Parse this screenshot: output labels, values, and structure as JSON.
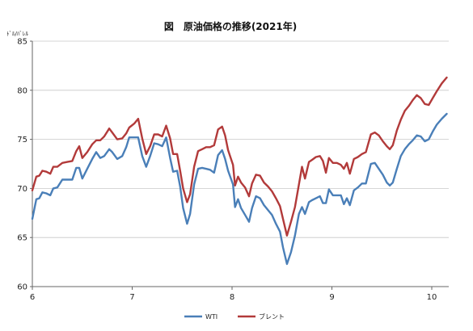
{
  "chart_data": {
    "type": "line",
    "title": "図　原油価格の推移(2021年)",
    "ylabel": "ﾄﾞﾙ/ﾊﾞﾚﾙ",
    "xlabel": "",
    "ylim": [
      60,
      85
    ],
    "yticks": [
      60,
      65,
      70,
      75,
      80,
      85
    ],
    "xlim": [
      6.0,
      10.17
    ],
    "xticks": [
      6,
      7,
      8,
      9,
      10
    ],
    "xticklabels": [
      "6",
      "7",
      "8",
      "9",
      "10"
    ],
    "grid": "horizontal",
    "legend_position": "bottom",
    "series": [
      {
        "name": "WTI",
        "color": "#4a7fb8",
        "points": [
          [
            6.0,
            66.9
          ],
          [
            6.04,
            68.9
          ],
          [
            6.07,
            69.0
          ],
          [
            6.1,
            69.6
          ],
          [
            6.14,
            69.5
          ],
          [
            6.18,
            69.3
          ],
          [
            6.21,
            70.0
          ],
          [
            6.25,
            70.1
          ],
          [
            6.3,
            70.9
          ],
          [
            6.35,
            70.9
          ],
          [
            6.4,
            70.9
          ],
          [
            6.44,
            72.1
          ],
          [
            6.47,
            72.1
          ],
          [
            6.5,
            71.0
          ],
          [
            6.55,
            72.0
          ],
          [
            6.6,
            73.0
          ],
          [
            6.64,
            73.7
          ],
          [
            6.68,
            73.1
          ],
          [
            6.72,
            73.3
          ],
          [
            6.77,
            74.0
          ],
          [
            6.8,
            73.7
          ],
          [
            6.85,
            73.0
          ],
          [
            6.9,
            73.3
          ],
          [
            6.94,
            74.2
          ],
          [
            6.97,
            75.2
          ],
          [
            7.02,
            75.2
          ],
          [
            7.06,
            75.2
          ],
          [
            7.1,
            73.3
          ],
          [
            7.14,
            72.2
          ],
          [
            7.18,
            73.3
          ],
          [
            7.22,
            74.6
          ],
          [
            7.26,
            74.5
          ],
          [
            7.3,
            74.3
          ],
          [
            7.34,
            75.2
          ],
          [
            7.38,
            73.1
          ],
          [
            7.41,
            71.7
          ],
          [
            7.45,
            71.8
          ],
          [
            7.48,
            70.2
          ],
          [
            7.51,
            68.0
          ],
          [
            7.55,
            66.4
          ],
          [
            7.58,
            67.4
          ],
          [
            7.62,
            70.4
          ],
          [
            7.66,
            72.0
          ],
          [
            7.7,
            72.1
          ],
          [
            7.74,
            72.0
          ],
          [
            7.78,
            71.9
          ],
          [
            7.82,
            71.6
          ],
          [
            7.86,
            73.4
          ],
          [
            7.9,
            73.9
          ],
          [
            7.93,
            73.0
          ],
          [
            7.96,
            71.8
          ],
          [
            8.01,
            70.4
          ],
          [
            8.03,
            68.1
          ],
          [
            8.06,
            68.9
          ],
          [
            8.09,
            68.0
          ],
          [
            8.13,
            67.3
          ],
          [
            8.17,
            66.6
          ],
          [
            8.2,
            68.0
          ],
          [
            8.24,
            69.2
          ],
          [
            8.28,
            69.0
          ],
          [
            8.32,
            68.3
          ],
          [
            8.36,
            67.8
          ],
          [
            8.4,
            67.3
          ],
          [
            8.44,
            66.4
          ],
          [
            8.48,
            65.6
          ],
          [
            8.51,
            64.0
          ],
          [
            8.55,
            62.3
          ],
          [
            8.59,
            63.5
          ],
          [
            8.63,
            65.2
          ],
          [
            8.67,
            67.4
          ],
          [
            8.7,
            68.1
          ],
          [
            8.73,
            67.4
          ],
          [
            8.77,
            68.6
          ],
          [
            8.8,
            68.8
          ],
          [
            8.84,
            69.0
          ],
          [
            8.88,
            69.2
          ],
          [
            8.91,
            68.5
          ],
          [
            8.94,
            68.5
          ],
          [
            8.97,
            69.9
          ],
          [
            9.01,
            69.3
          ],
          [
            9.05,
            69.3
          ],
          [
            9.09,
            69.3
          ],
          [
            9.12,
            68.4
          ],
          [
            9.15,
            69.0
          ],
          [
            9.18,
            68.3
          ],
          [
            9.22,
            69.8
          ],
          [
            9.26,
            70.1
          ],
          [
            9.3,
            70.5
          ],
          [
            9.34,
            70.5
          ],
          [
            9.39,
            72.5
          ],
          [
            9.43,
            72.6
          ],
          [
            9.47,
            72.0
          ],
          [
            9.51,
            71.4
          ],
          [
            9.55,
            70.6
          ],
          [
            9.58,
            70.3
          ],
          [
            9.61,
            70.6
          ],
          [
            9.65,
            72.0
          ],
          [
            9.69,
            73.3
          ],
          [
            9.73,
            74.0
          ],
          [
            9.77,
            74.5
          ],
          [
            9.81,
            74.9
          ],
          [
            9.85,
            75.4
          ],
          [
            9.89,
            75.3
          ],
          [
            9.93,
            74.8
          ],
          [
            9.97,
            75.0
          ],
          [
            10.01,
            75.8
          ],
          [
            10.05,
            76.5
          ],
          [
            10.1,
            77.1
          ],
          [
            10.15,
            77.6
          ]
        ]
      },
      {
        "name": "ブレント",
        "color": "#b23a3a",
        "points": [
          [
            6.0,
            69.8
          ],
          [
            6.04,
            71.2
          ],
          [
            6.07,
            71.3
          ],
          [
            6.1,
            71.8
          ],
          [
            6.14,
            71.7
          ],
          [
            6.18,
            71.5
          ],
          [
            6.21,
            72.2
          ],
          [
            6.25,
            72.2
          ],
          [
            6.3,
            72.6
          ],
          [
            6.35,
            72.7
          ],
          [
            6.4,
            72.8
          ],
          [
            6.44,
            73.8
          ],
          [
            6.47,
            74.3
          ],
          [
            6.5,
            73.1
          ],
          [
            6.55,
            73.7
          ],
          [
            6.6,
            74.5
          ],
          [
            6.64,
            74.9
          ],
          [
            6.68,
            74.9
          ],
          [
            6.72,
            75.3
          ],
          [
            6.77,
            76.1
          ],
          [
            6.8,
            75.7
          ],
          [
            6.85,
            75.0
          ],
          [
            6.9,
            75.1
          ],
          [
            6.94,
            75.6
          ],
          [
            6.97,
            76.2
          ],
          [
            7.02,
            76.6
          ],
          [
            7.06,
            77.1
          ],
          [
            7.1,
            75.1
          ],
          [
            7.14,
            73.5
          ],
          [
            7.18,
            74.3
          ],
          [
            7.22,
            75.5
          ],
          [
            7.26,
            75.5
          ],
          [
            7.3,
            75.3
          ],
          [
            7.34,
            76.4
          ],
          [
            7.38,
            75.1
          ],
          [
            7.41,
            73.5
          ],
          [
            7.45,
            73.5
          ],
          [
            7.48,
            71.8
          ],
          [
            7.51,
            70.0
          ],
          [
            7.55,
            68.6
          ],
          [
            7.58,
            69.4
          ],
          [
            7.62,
            72.2
          ],
          [
            7.66,
            73.8
          ],
          [
            7.7,
            74.0
          ],
          [
            7.74,
            74.2
          ],
          [
            7.78,
            74.2
          ],
          [
            7.82,
            74.4
          ],
          [
            7.86,
            76.0
          ],
          [
            7.9,
            76.3
          ],
          [
            7.93,
            75.4
          ],
          [
            7.96,
            73.9
          ],
          [
            8.01,
            72.4
          ],
          [
            8.03,
            70.3
          ],
          [
            8.06,
            71.2
          ],
          [
            8.09,
            70.6
          ],
          [
            8.13,
            70.1
          ],
          [
            8.17,
            69.2
          ],
          [
            8.2,
            70.5
          ],
          [
            8.24,
            71.4
          ],
          [
            8.28,
            71.3
          ],
          [
            8.32,
            70.6
          ],
          [
            8.36,
            70.2
          ],
          [
            8.4,
            69.7
          ],
          [
            8.44,
            69.0
          ],
          [
            8.48,
            68.2
          ],
          [
            8.51,
            66.9
          ],
          [
            8.55,
            65.2
          ],
          [
            8.59,
            66.6
          ],
          [
            8.63,
            68.1
          ],
          [
            8.67,
            70.4
          ],
          [
            8.7,
            72.2
          ],
          [
            8.73,
            71.0
          ],
          [
            8.77,
            72.7
          ],
          [
            8.8,
            72.9
          ],
          [
            8.84,
            73.2
          ],
          [
            8.88,
            73.3
          ],
          [
            8.91,
            72.8
          ],
          [
            8.94,
            71.6
          ],
          [
            8.97,
            73.1
          ],
          [
            9.01,
            72.6
          ],
          [
            9.05,
            72.6
          ],
          [
            9.09,
            72.4
          ],
          [
            9.12,
            72.0
          ],
          [
            9.15,
            72.6
          ],
          [
            9.18,
            71.5
          ],
          [
            9.22,
            73.0
          ],
          [
            9.26,
            73.2
          ],
          [
            9.3,
            73.5
          ],
          [
            9.34,
            73.7
          ],
          [
            9.39,
            75.5
          ],
          [
            9.43,
            75.7
          ],
          [
            9.47,
            75.4
          ],
          [
            9.51,
            74.8
          ],
          [
            9.55,
            74.3
          ],
          [
            9.58,
            74.0
          ],
          [
            9.61,
            74.4
          ],
          [
            9.65,
            75.9
          ],
          [
            9.69,
            77.0
          ],
          [
            9.73,
            77.9
          ],
          [
            9.77,
            78.4
          ],
          [
            9.81,
            79.0
          ],
          [
            9.85,
            79.5
          ],
          [
            9.89,
            79.2
          ],
          [
            9.93,
            78.6
          ],
          [
            9.97,
            78.5
          ],
          [
            10.01,
            79.2
          ],
          [
            10.05,
            79.9
          ],
          [
            10.1,
            80.7
          ],
          [
            10.15,
            81.3
          ]
        ]
      }
    ]
  }
}
